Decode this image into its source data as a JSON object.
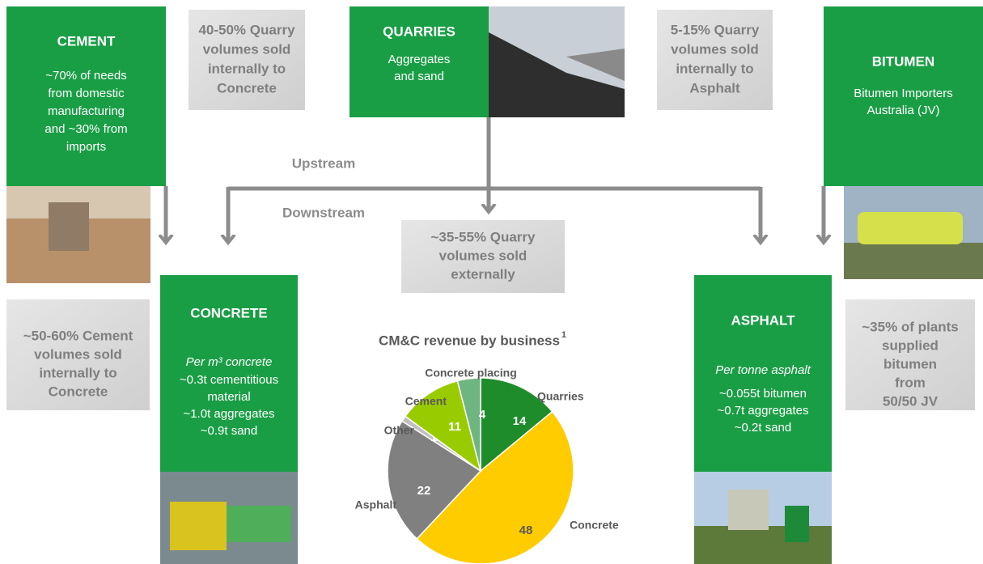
{
  "cement": {
    "title": "CEMENT",
    "lines": [
      "~70% of needs",
      "from domestic",
      "manufacturing",
      "and ~30% from",
      "imports"
    ]
  },
  "quarry_internal_concrete": {
    "lines": [
      "40-50% Quarry",
      "volumes sold",
      "internally to",
      "Concrete"
    ]
  },
  "quarries": {
    "title": "QUARRIES",
    "lines": [
      "Aggregates",
      "and sand"
    ]
  },
  "quarry_internal_asphalt": {
    "lines": [
      "5-15% Quarry",
      "volumes sold",
      "internally to",
      "Asphalt"
    ]
  },
  "bitumen": {
    "title": "BITUMEN",
    "lines": [
      "Bitumen Importers",
      "Australia (JV)"
    ]
  },
  "upstream": "Upstream",
  "downstream": "Downstream",
  "quarry_external": {
    "lines": [
      "~35-55% Quarry",
      "volumes sold",
      "externally"
    ]
  },
  "cement_internal": {
    "lines": [
      "~50-60% Cement",
      "volumes sold",
      "internally to",
      "Concrete"
    ]
  },
  "concrete": {
    "title": "CONCRETE",
    "subtitle": "Per m³ concrete",
    "lines": [
      "~0.3t cementitious",
      "material",
      "~1.0t aggregates",
      "~0.9t sand"
    ]
  },
  "asphalt": {
    "title": "ASPHALT",
    "subtitle": "Per tonne asphalt",
    "lines": [
      "~0.055t bitumen",
      "~0.7t aggregates",
      "~0.2t sand"
    ]
  },
  "bitumen_supply": {
    "lines": [
      "~35% of plants",
      "supplied",
      "bitumen",
      "from",
      "50/50 JV"
    ]
  },
  "chart_data": {
    "type": "pie",
    "title": "CM&C revenue by business",
    "title_note": "1",
    "categories": [
      "Quarries",
      "Concrete",
      "Asphalt",
      "Other",
      "Cement",
      "Concrete placing"
    ],
    "values": [
      14,
      48,
      22,
      1,
      11,
      4
    ],
    "colors": [
      "#1e8c2a",
      "#ffcc00",
      "#808080",
      "#c0c0c0",
      "#99cc00",
      "#6fb582"
    ]
  }
}
